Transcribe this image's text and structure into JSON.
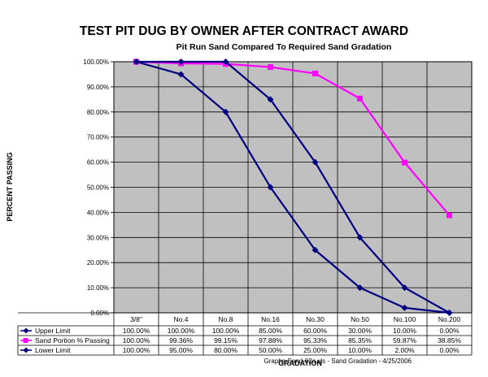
{
  "chart_data": {
    "type": "line",
    "title": "TEST PIT DUG BY OWNER AFTER CONTRACT AWARD",
    "subtitle": "Pit Run Sand Compared To Required Sand Gradation",
    "ylabel": "PERCENT PASSING",
    "xlabel": "GRADATION",
    "categories": [
      "3/8\"",
      "No.4",
      "No.8",
      "No.16",
      "No.30",
      "No.50",
      "No.100",
      "No.200"
    ],
    "ylim": [
      0,
      100
    ],
    "y_ticks": [
      0,
      10,
      20,
      30,
      40,
      50,
      60,
      70,
      80,
      90,
      100
    ],
    "y_tick_labels": [
      "0.00%",
      "10.00%",
      "20.00%",
      "30.00%",
      "40.00%",
      "50.00%",
      "60.00%",
      "70.00%",
      "80.00%",
      "90.00%",
      "100.00%"
    ],
    "grid": true,
    "plot_background": "#c0c0c0",
    "legend_placement": "data-table-left",
    "series": [
      {
        "name": "Upper Limit",
        "color": "#000080",
        "marker": "diamond",
        "values": [
          100,
          100,
          100,
          85,
          60,
          30,
          10,
          0
        ],
        "labels": [
          "100.00%",
          "100.00%",
          "100.00%",
          "85.00%",
          "60.00%",
          "30.00%",
          "10.00%",
          "0.00%"
        ]
      },
      {
        "name": "Sand Portion % Passing",
        "color": "#ff00ff",
        "marker": "square",
        "values": [
          100,
          99.36,
          99.15,
          97.88,
          95.33,
          85.35,
          59.87,
          38.85
        ],
        "labels": [
          "100.00%",
          "99.36%",
          "99.15%",
          "97.88%",
          "95.33%",
          "85.35%",
          "59.87%",
          "38.85%"
        ]
      },
      {
        "name": "Lower Limit",
        "color": "#000080",
        "marker": "diamond",
        "values": [
          100,
          95,
          80,
          50,
          25,
          10,
          2,
          0
        ],
        "labels": [
          "100.00%",
          "95.00%",
          "80.00%",
          "50.00%",
          "25.00%",
          "10.00%",
          "2.00%",
          "0.00%"
        ]
      }
    ],
    "annotation": "Graphs-Sand-02a.xls - Sand Gradation - 4/25/2006"
  }
}
